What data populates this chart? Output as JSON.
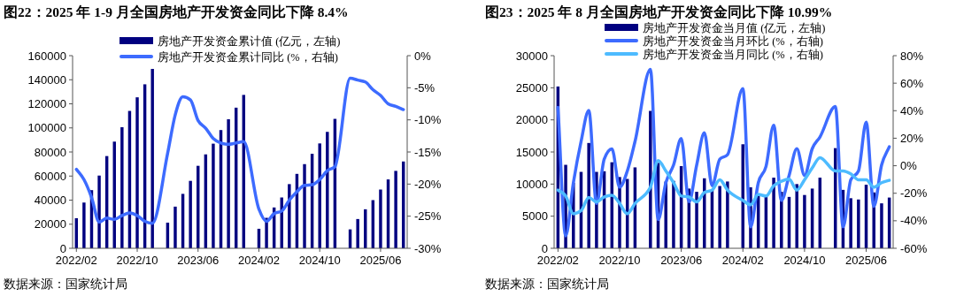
{
  "chart_data": [
    {
      "type": "bar",
      "title": "图22：2025 年 1-9 月全国房地产开发资金同比下降 8.4%",
      "categories": [
        "2022/02",
        null,
        null,
        null,
        null,
        null,
        null,
        null,
        "2022/10",
        null,
        null,
        null,
        null,
        null,
        null,
        null,
        "2023/06",
        null,
        null,
        null,
        null,
        null,
        null,
        null,
        "2024/02",
        null,
        null,
        null,
        null,
        null,
        null,
        null,
        "2024/10",
        null,
        null,
        null,
        null,
        null,
        null,
        null,
        "2025/06",
        null,
        null,
        null
      ],
      "series": [
        {
          "type": "bar",
          "name": "房地产开发资金累计值 (亿元，左轴)",
          "color": "#000080",
          "values": [
            25000,
            38000,
            48300,
            60400,
            76600,
            88600,
            100600,
            114100,
            125400,
            136200,
            149000,
            null,
            21300,
            34600,
            45200,
            56000,
            68500,
            78000,
            86900,
            98200,
            107200,
            116800,
            127400,
            null,
            16200,
            25300,
            33900,
            42200,
            53300,
            61800,
            69900,
            78500,
            87100,
            96700,
            107500,
            null,
            15700,
            24300,
            32400,
            40000,
            48800,
            57200,
            64300,
            72100
          ]
        },
        {
          "type": "line",
          "axis": "y2",
          "name": "房地产开发资金累计同比 (%，右轴)",
          "color": "#3d6bff",
          "values": [
            -17.7,
            -19.3,
            -22.1,
            -25.9,
            -25.3,
            -25.5,
            -24.9,
            -24.5,
            -24.9,
            -25.8,
            -26.1,
            null,
            -15.2,
            -9.2,
            -6.4,
            -6.9,
            -10.1,
            -11.3,
            -12.9,
            -13.6,
            -13.8,
            -13.6,
            -13.4,
            null,
            -23.9,
            -25.8,
            -24.6,
            -24.2,
            -22.5,
            -21.2,
            -20.2,
            -20.1,
            -19.3,
            -17.9,
            -17.3,
            null,
            -3.5,
            -3.8,
            -4.1,
            -5.3,
            -6.2,
            -7.5,
            -7.9,
            -8.4
          ]
        }
      ],
      "ylim": [
        0,
        160000
      ],
      "yticks": [
        0,
        20000,
        40000,
        60000,
        80000,
        100000,
        120000,
        140000,
        160000
      ],
      "y2lim": [
        -30,
        0
      ],
      "y2ticks": [
        {
          "value": -30,
          "label": "-30%"
        },
        {
          "value": -25,
          "label": "-25%"
        },
        {
          "value": -20,
          "label": "-20%"
        },
        {
          "value": -15,
          "label": "-15%"
        },
        {
          "value": -10,
          "label": "-10%"
        },
        {
          "value": -5,
          "label": "-5%"
        },
        {
          "value": 0,
          "label": "0%"
        }
      ],
      "legend": "top",
      "grid": false,
      "annotations": [
        "数据来源：国家统计局"
      ]
    },
    {
      "type": "bar",
      "title": "图23：2025 年 8 月全国房地产开发资金同比下降 10.99%",
      "categories": [
        "2022/02",
        null,
        null,
        null,
        null,
        null,
        null,
        null,
        "2022/10",
        null,
        null,
        null,
        null,
        null,
        null,
        null,
        "2023/06",
        null,
        null,
        null,
        null,
        null,
        null,
        null,
        "2024/02",
        null,
        null,
        null,
        null,
        null,
        null,
        null,
        "2024/10",
        null,
        null,
        null,
        null,
        null,
        null,
        null,
        "2025/06",
        null,
        null,
        null
      ],
      "series": [
        {
          "type": "bar",
          "name": "房地产开发资金当月值 (亿元，左轴)",
          "color": "#000080",
          "values": [
            25200,
            13000,
            10200,
            11900,
            16400,
            11900,
            12000,
            13400,
            11100,
            10800,
            12600,
            null,
            21400,
            13300,
            10400,
            10500,
            12800,
            9300,
            8800,
            10900,
            9100,
            9700,
            10400,
            null,
            16200,
            9500,
            8200,
            8200,
            11000,
            8800,
            8000,
            10000,
            8300,
            9300,
            11000,
            null,
            15600,
            9100,
            7800,
            7600,
            9900,
            8700,
            7000,
            7900
          ]
        },
        {
          "type": "line",
          "axis": "y2",
          "name": "房地产开发资金当月环比 (%，右轴)",
          "color": "#3d6bff",
          "values": [
            42.5,
            -51,
            -12.3,
            17.7,
            40.2,
            -27.4,
            4.8,
            12.3,
            -15.6,
            -3.8,
            17.7,
            null,
            70,
            -39.2,
            -12.3,
            0.5,
            19.8,
            -26.3,
            0.5,
            23.9,
            -14.5,
            4.8,
            8.0,
            null,
            56,
            -44.5,
            -12.3,
            -0.5,
            29.5,
            -25.2,
            -7,
            12.4,
            -7,
            12.4,
            20.9,
            null,
            43,
            -44.5,
            -10.2,
            -3.8,
            31.7,
            -29.5,
            0.5,
            13.8
          ]
        },
        {
          "type": "line",
          "axis": "y2",
          "name": "房地产开发资金当月同比 (%，右轴)",
          "color": "#4dbbff",
          "values": [
            -17.7,
            -22,
            -34.9,
            -32.7,
            -23,
            -26.3,
            -22.7,
            -21.4,
            -27.4,
            -34.9,
            -27.4,
            null,
            -15.6,
            3.7,
            -3.8,
            -12.3,
            -22,
            -22.7,
            -26.3,
            -19.4,
            -17.7,
            -10.2,
            -17.7,
            null,
            -25.2,
            -28.4,
            -20.9,
            -22,
            -14.5,
            -11.3,
            -9.8,
            -17.7,
            -10.2,
            -1.6,
            5.9,
            null,
            -3.8,
            -3.8,
            -5.9,
            -10.2,
            -10.2,
            -15.6,
            -12.3,
            -10.6
          ]
        }
      ],
      "ylim": [
        0,
        30000
      ],
      "yticks": [
        0,
        5000,
        10000,
        15000,
        20000,
        25000,
        30000
      ],
      "y2lim": [
        -60,
        80
      ],
      "y2ticks": [
        {
          "value": -60,
          "label": "-60%"
        },
        {
          "value": -40,
          "label": "-40%"
        },
        {
          "value": -20,
          "label": "-20%"
        },
        {
          "value": 0,
          "label": "0%"
        },
        {
          "value": 20,
          "label": "20%"
        },
        {
          "value": 40,
          "label": "40%"
        },
        {
          "value": 60,
          "label": "60%"
        },
        {
          "value": 80,
          "label": "80%"
        }
      ],
      "legend": "top",
      "grid": false,
      "annotations": [
        "数据来源：国家统计局"
      ]
    }
  ]
}
